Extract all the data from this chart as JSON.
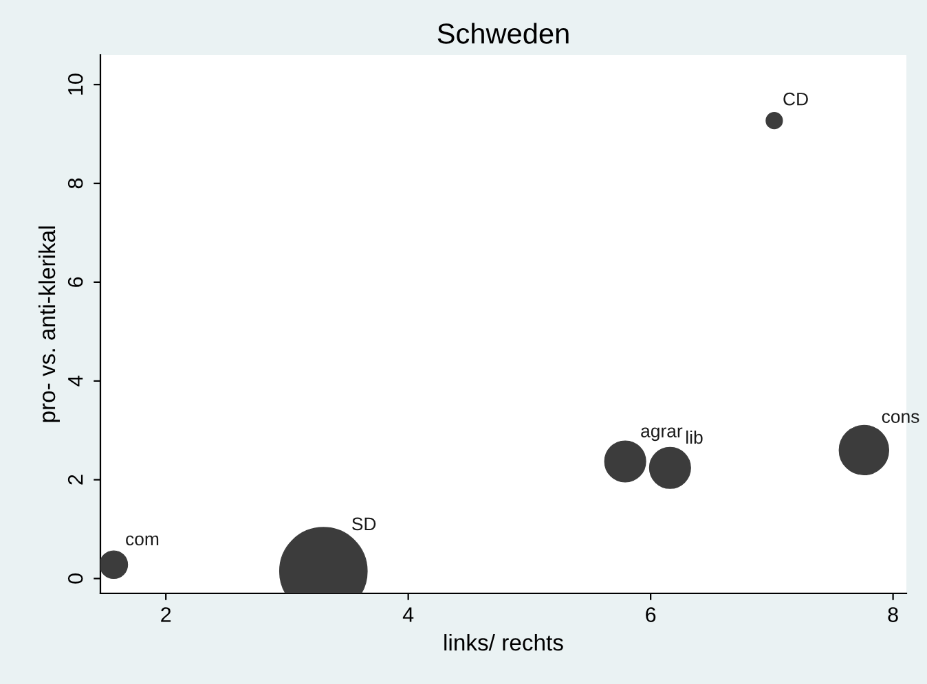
{
  "chart_data": {
    "type": "bubble",
    "title": "Schweden",
    "xlabel": "links/ rechts",
    "ylabel": "pro- vs. anti-klerikal",
    "x": [
      1.57,
      3.3,
      5.79,
      6.16,
      7.02,
      7.76
    ],
    "values": [
      0.28,
      0.15,
      2.37,
      2.24,
      9.27,
      2.6
    ],
    "sizes": [
      0.1,
      1,
      0.22,
      0.22,
      0.035,
      0.32
    ],
    "color": "#3c3c3c",
    "annotations": [
      {
        "text": "com",
        "x": 1.57,
        "y": 0.28
      },
      {
        "text": "SD",
        "x": 3.3,
        "y": 0.15
      },
      {
        "text": "agrar",
        "x": 5.79,
        "y": 2.37
      },
      {
        "text": "lib",
        "x": 6.16,
        "y": 2.24
      },
      {
        "text": "CD",
        "x": 7.02,
        "y": 9.27
      },
      {
        "text": "cons",
        "x": 7.76,
        "y": 2.6
      }
    ],
    "xlim": [
      1.46,
      8.11
    ],
    "ylim": [
      -0.3,
      10.6
    ],
    "xticks": [
      2,
      4,
      6,
      8
    ],
    "yticks": [
      0,
      2,
      4,
      6,
      8,
      10
    ],
    "grid": false,
    "legend": false
  }
}
